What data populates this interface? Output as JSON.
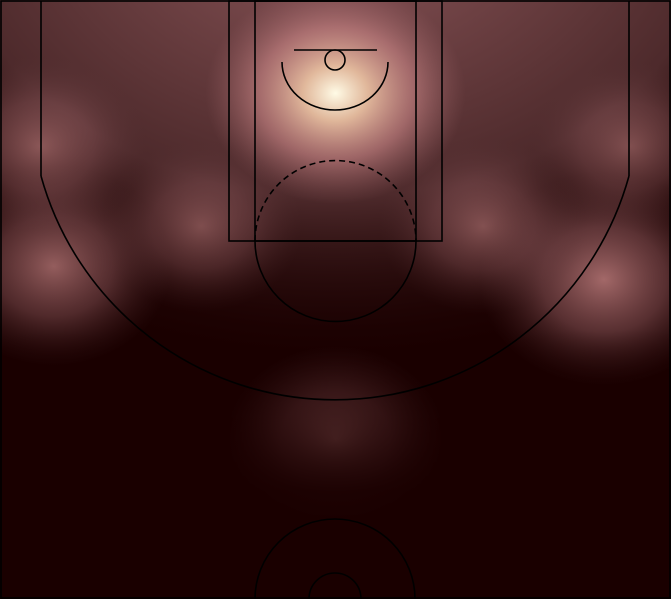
{
  "chart_data": {
    "type": "heatmap",
    "title": "",
    "xlabel": "",
    "ylabel": "",
    "colormap": [
      "#1a0000",
      "#5a3436",
      "#a86c70",
      "#d79090",
      "#eec5a5",
      "#fffbe6"
    ],
    "court_color": "#1a0000",
    "line_color": "#000000",
    "density_hotspots": [
      {
        "id": "rim-area",
        "x": 0,
        "y": 2,
        "intensity": 1.0
      },
      {
        "id": "right-wing-three",
        "x": 20,
        "y": 16,
        "intensity": 0.72
      },
      {
        "id": "left-wing-three",
        "x": -21,
        "y": 15,
        "intensity": 0.64
      },
      {
        "id": "left-corner",
        "x": -22,
        "y": 6,
        "intensity": 0.52
      },
      {
        "id": "right-corner",
        "x": 22,
        "y": 6,
        "intensity": 0.45
      },
      {
        "id": "top-of-key-three",
        "x": 0,
        "y": 28,
        "intensity": 0.55
      },
      {
        "id": "midrange-left",
        "x": -10,
        "y": 12,
        "intensity": 0.45
      },
      {
        "id": "midrange-right",
        "x": 11,
        "y": 12,
        "intensity": 0.48
      }
    ],
    "xlim": [
      -25,
      25
    ],
    "ylim": [
      -5,
      40
    ]
  }
}
